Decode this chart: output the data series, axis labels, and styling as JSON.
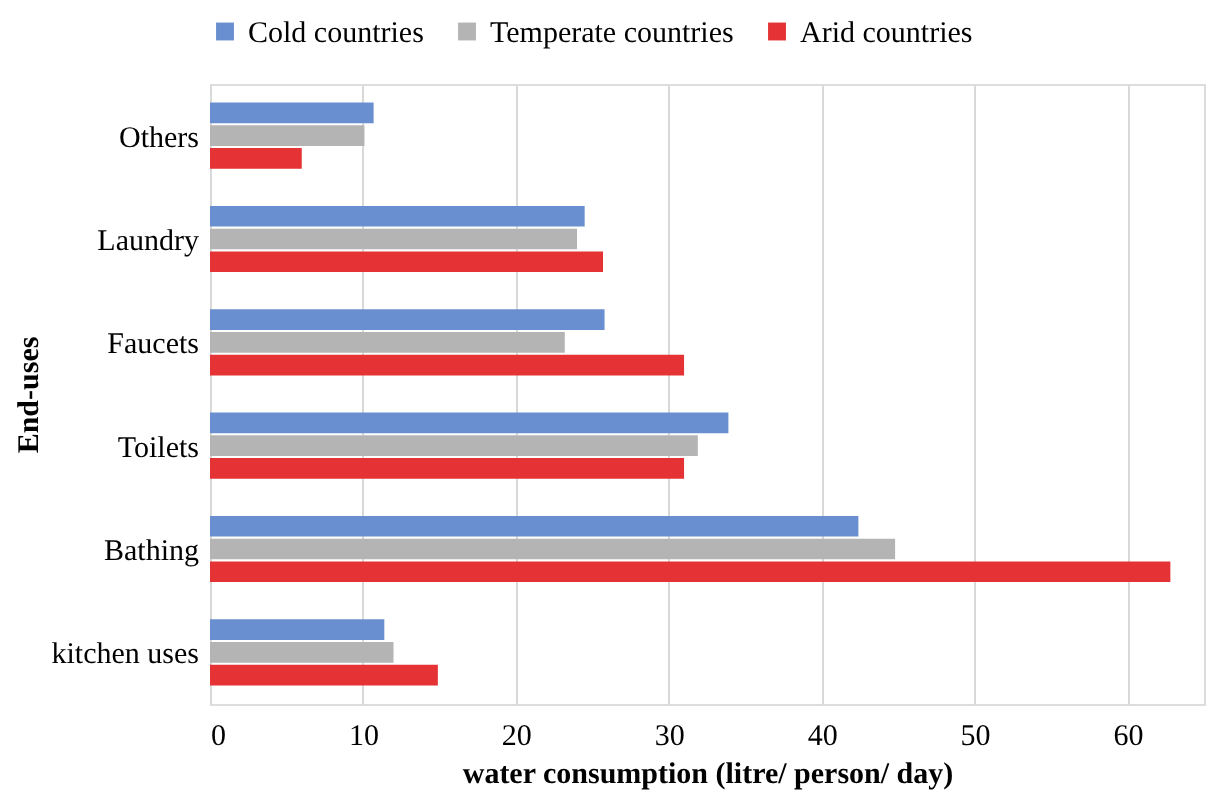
{
  "chart_data": {
    "type": "bar",
    "orientation": "horizontal",
    "ylabel": "End-uses",
    "xlabel": "water consumption (litre/ person/ day)",
    "categories": [
      "Others",
      "Laundry",
      "Faucets",
      "Toilets",
      "Bathing",
      "kitchen uses"
    ],
    "series": [
      {
        "name": "Cold countries",
        "color": "#6a8fd0",
        "values": [
          10.7,
          24.5,
          25.8,
          33.9,
          42.4,
          11.4
        ]
      },
      {
        "name": "Temperate countries",
        "color": "#b4b4b4",
        "values": [
          10.1,
          24.0,
          23.2,
          31.9,
          44.8,
          12.0
        ]
      },
      {
        "name": "Arid countries",
        "color": "#e53234",
        "values": [
          6.0,
          25.7,
          31.0,
          31.0,
          62.8,
          14.9
        ]
      }
    ],
    "xlim": [
      0,
      65
    ],
    "xticks": [
      0,
      10,
      20,
      30,
      40,
      50,
      60
    ],
    "grid": "x",
    "legend": "top"
  }
}
